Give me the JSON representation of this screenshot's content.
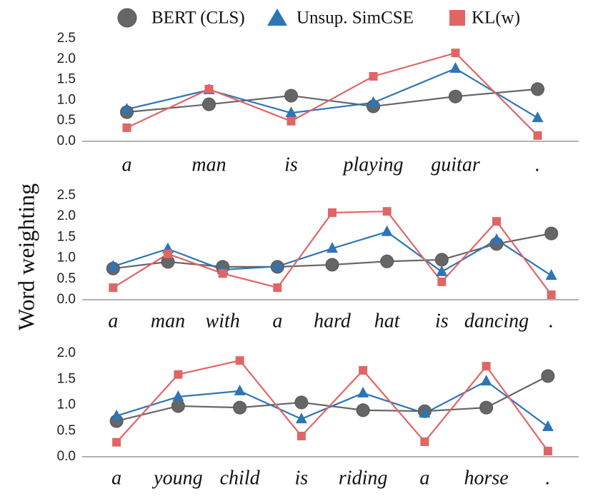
{
  "chart_data": [
    {
      "type": "line",
      "ylabel": "Word weighting",
      "categories": [
        "a",
        "man",
        "is",
        "playing",
        "guitar",
        "."
      ],
      "ylim": [
        0,
        2.5
      ],
      "yticks": [
        {
          "value": 0,
          "label": "0.0"
        },
        0.5,
        {
          "value": 1,
          "label": "1.0"
        },
        1.5,
        {
          "value": 2,
          "label": "2.0"
        },
        2.5
      ],
      "series": [
        {
          "name": "BERT (CLS)",
          "color": "#666666",
          "marker": "circle",
          "values": [
            0.71,
            0.9,
            1.11,
            0.85,
            1.09,
            1.27
          ]
        },
        {
          "name": "Unsup. SimCSE",
          "color": "#2e75b6",
          "marker": "triangle",
          "values": [
            0.78,
            1.25,
            0.69,
            0.94,
            1.77,
            0.57
          ]
        },
        {
          "name": "KL(w)",
          "color": "#e06666",
          "marker": "square",
          "values": [
            0.33,
            1.27,
            0.49,
            1.58,
            2.15,
            0.14
          ]
        }
      ]
    },
    {
      "type": "line",
      "categories": [
        "a",
        "man",
        "with",
        "a",
        "hard",
        "hat",
        "is",
        "dancing",
        "."
      ],
      "ylim": [
        0,
        2.5
      ],
      "yticks": [
        {
          "value": 0,
          "label": "0.0"
        },
        0.5,
        {
          "value": 1,
          "label": "1.0"
        },
        1.5,
        {
          "value": 2,
          "label": "2.0"
        },
        2.5
      ],
      "series": [
        {
          "name": "BERT (CLS)",
          "color": "#666666",
          "marker": "circle",
          "values": [
            0.75,
            0.91,
            0.79,
            0.79,
            0.84,
            0.92,
            0.96,
            1.34,
            1.59
          ]
        },
        {
          "name": "Unsup. SimCSE",
          "color": "#2e75b6",
          "marker": "triangle",
          "values": [
            0.8,
            1.22,
            0.72,
            0.8,
            1.23,
            1.63,
            0.67,
            1.44,
            0.58
          ]
        },
        {
          "name": "KL(w)",
          "color": "#e06666",
          "marker": "square",
          "values": [
            0.29,
            1.1,
            0.63,
            0.29,
            2.09,
            2.12,
            0.43,
            1.88,
            0.12
          ]
        }
      ]
    },
    {
      "type": "line",
      "categories": [
        "a",
        "young",
        "child",
        "is",
        "riding",
        "a",
        "horse",
        "."
      ],
      "ylim": [
        0,
        2
      ],
      "yticks": [
        {
          "value": 0,
          "label": "0.0"
        },
        0.5,
        {
          "value": 1,
          "label": "1.0"
        },
        1.5,
        {
          "value": 2,
          "label": "2.0"
        }
      ],
      "series": [
        {
          "name": "BERT (CLS)",
          "color": "#666666",
          "marker": "circle",
          "values": [
            0.69,
            0.98,
            0.95,
            1.05,
            0.9,
            0.88,
            0.95,
            1.56
          ]
        },
        {
          "name": "Unsup. SimCSE",
          "color": "#2e75b6",
          "marker": "triangle",
          "values": [
            0.79,
            1.16,
            1.27,
            0.73,
            1.23,
            0.84,
            1.46,
            0.58
          ]
        },
        {
          "name": "KL(w)",
          "color": "#e06666",
          "marker": "square",
          "values": [
            0.28,
            1.59,
            1.86,
            0.4,
            1.67,
            0.29,
            1.75,
            0.11
          ]
        }
      ]
    }
  ]
}
